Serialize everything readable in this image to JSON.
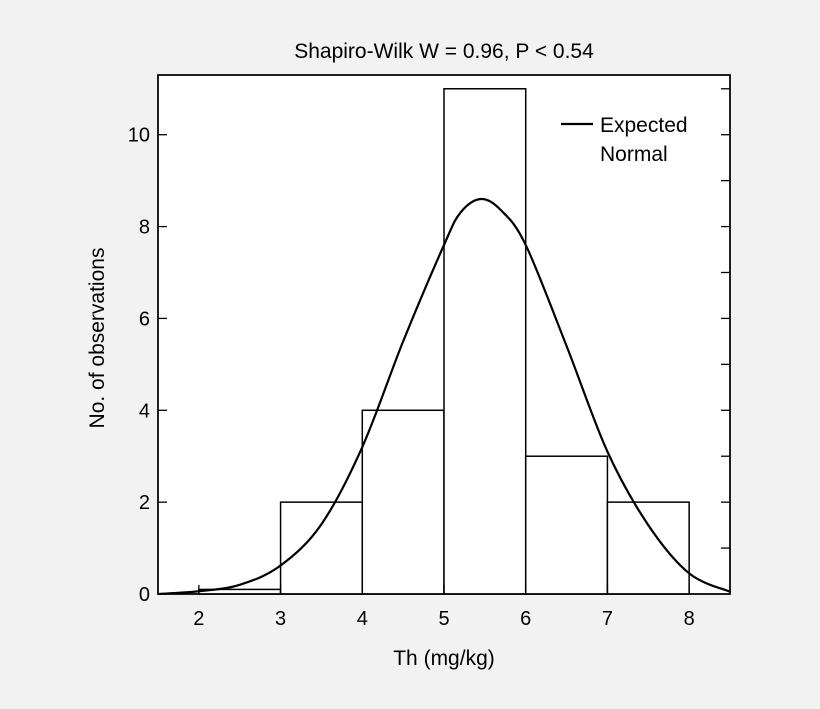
{
  "colors": {
    "background": "#f2f2f2",
    "plot_fill": "#ffffff",
    "bar_fill": "#ffffff",
    "stroke": "#000000"
  },
  "chart_data": {
    "type": "bar",
    "subtype": "histogram with fitted normal curve",
    "title": "Shapiro-Wilk W = 0.96, P < 0.54",
    "xlabel": "Th (mg/kg)",
    "ylabel": "No. of observations",
    "xlim": [
      1.5,
      8.5
    ],
    "ylim": [
      0,
      11.3
    ],
    "x_ticks": [
      "2",
      "3",
      "4",
      "5",
      "6",
      "7",
      "8"
    ],
    "y_ticks": [
      "0",
      "2",
      "4",
      "6",
      "8",
      "10"
    ],
    "bins": [
      {
        "from": 2,
        "to": 3,
        "count": 0.1
      },
      {
        "from": 3,
        "to": 4,
        "count": 2
      },
      {
        "from": 4,
        "to": 5,
        "count": 4
      },
      {
        "from": 5,
        "to": 6,
        "count": 11
      },
      {
        "from": 6,
        "to": 7,
        "count": 3
      },
      {
        "from": 7,
        "to": 8,
        "count": 2
      }
    ],
    "series": [
      {
        "name": "Expected Normal",
        "type": "line",
        "x": [
          1.5,
          2.0,
          2.5,
          3.0,
          3.5,
          4.0,
          4.5,
          5.0,
          5.2,
          5.45,
          5.7,
          6.0,
          6.5,
          7.0,
          7.5,
          8.0,
          8.5
        ],
        "y": [
          0.0,
          0.06,
          0.2,
          0.62,
          1.52,
          3.2,
          5.5,
          7.6,
          8.3,
          8.6,
          8.35,
          7.6,
          5.4,
          3.1,
          1.5,
          0.45,
          0.05
        ]
      }
    ],
    "legend": {
      "position": "top-right",
      "lines": [
        "Expected",
        "Normal"
      ]
    },
    "grid": false
  }
}
